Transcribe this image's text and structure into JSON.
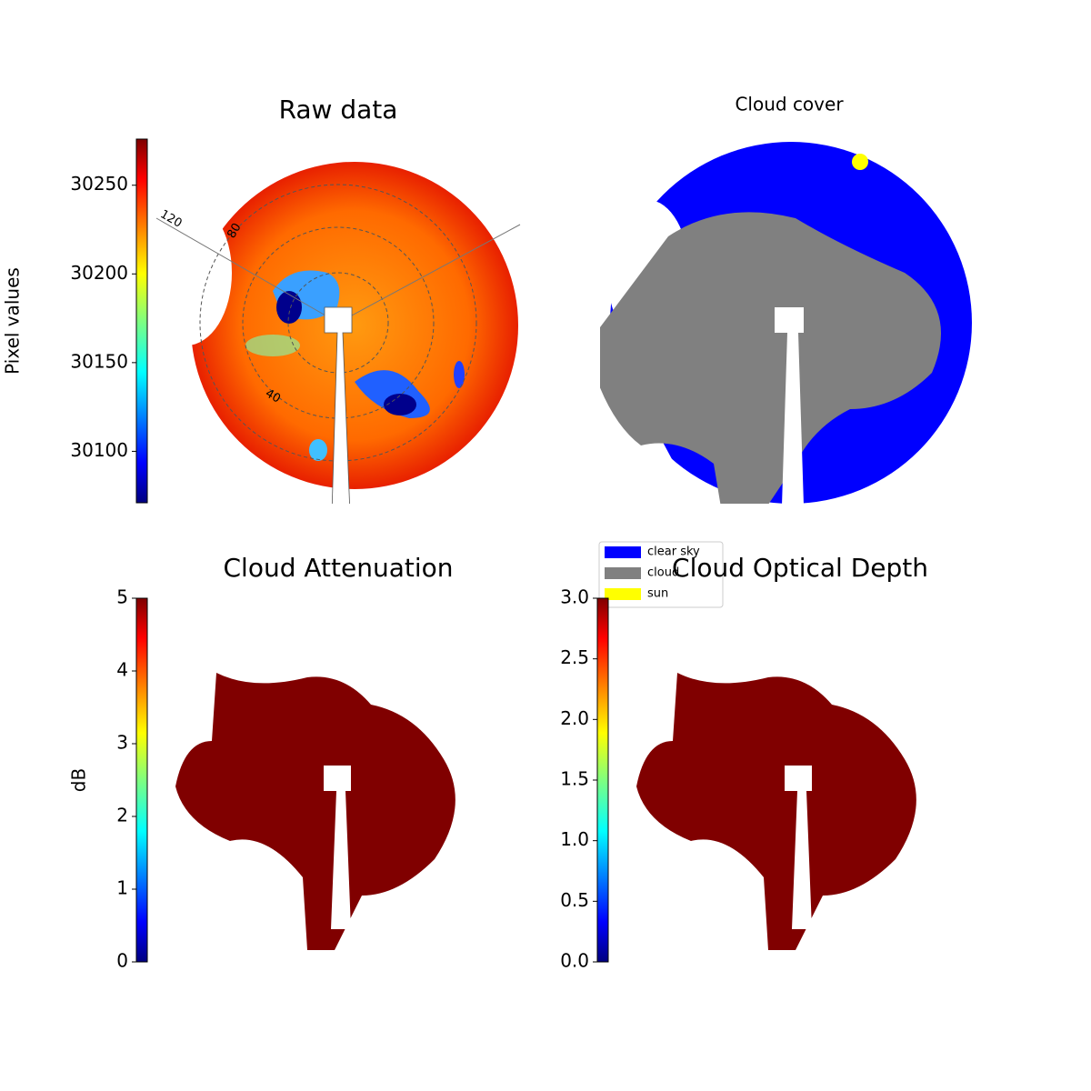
{
  "chart_data": [
    {
      "type": "image",
      "title": "Raw data",
      "colormap": "jet",
      "colorbar": {
        "label": "Pixel values",
        "ylim": [
          30071,
          30276
        ],
        "yticks": [
          30100,
          30150,
          30200,
          30250
        ]
      },
      "annotations": [
        "120",
        "80",
        "40"
      ]
    },
    {
      "type": "image",
      "title": "Cloud cover",
      "series": [
        {
          "name": "clear sky",
          "color": "#0000ff"
        },
        {
          "name": "cloud",
          "color": "#808080"
        },
        {
          "name": "sun",
          "color": "#ffff00"
        }
      ]
    },
    {
      "type": "image",
      "title": "Cloud Attenuation",
      "colormap": "jet",
      "colorbar": {
        "label": "dB",
        "ylim": [
          0,
          5
        ],
        "yticks": [
          0,
          1,
          2,
          3,
          4,
          5
        ]
      }
    },
    {
      "type": "image",
      "title": "Cloud Optical Depth",
      "colormap": "jet",
      "colorbar": {
        "ylim": [
          0,
          3
        ],
        "yticks": [
          {
            "value": 0,
            "label": "0.0"
          },
          {
            "value": 0.5,
            "label": "0.5"
          },
          {
            "value": 1,
            "label": "1.0"
          },
          {
            "value": 1.5,
            "label": "1.5"
          },
          {
            "value": 2,
            "label": "2.0"
          },
          {
            "value": 2.5,
            "label": "2.5"
          },
          {
            "value": 3,
            "label": "3.0"
          }
        ]
      }
    }
  ]
}
